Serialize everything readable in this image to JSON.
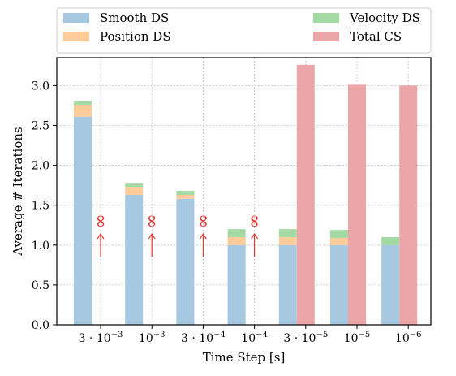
{
  "chart_data": {
    "type": "bar",
    "stacked_series_group": "DS",
    "categories": [
      {
        "base": "3 · 10",
        "exp": "−3"
      },
      {
        "base": "10",
        "exp": "−3"
      },
      {
        "base": "3 · 10",
        "exp": "−4"
      },
      {
        "base": "10",
        "exp": "−4"
      },
      {
        "base": "3 · 10",
        "exp": "−5"
      },
      {
        "base": "10",
        "exp": "−5"
      },
      {
        "base": "10",
        "exp": "−6"
      }
    ],
    "series": [
      {
        "name": "Smooth DS",
        "group": "DS",
        "color": "#a6c8e0",
        "values": [
          2.61,
          1.63,
          1.58,
          1.0,
          1.0,
          1.0,
          1.0
        ]
      },
      {
        "name": "Position DS",
        "group": "DS",
        "color": "#ffcc99",
        "values": [
          0.15,
          0.1,
          0.05,
          0.1,
          0.1,
          0.09,
          0.0
        ]
      },
      {
        "name": "Velocity DS",
        "group": "DS",
        "color": "#a3d9a3",
        "values": [
          0.05,
          0.05,
          0.05,
          0.1,
          0.1,
          0.1,
          0.1
        ]
      },
      {
        "name": "Total CS",
        "group": "CS",
        "color": "#eda6a8",
        "values": [
          null,
          null,
          null,
          null,
          3.26,
          3.01,
          3.0
        ]
      }
    ],
    "divergence_markers": {
      "series": "Total CS",
      "categories": [
        0,
        1,
        2,
        3
      ],
      "symbol": "∞",
      "color": "#e8352f",
      "marker_level": 1.3
    },
    "xlabel": "Time Step [s]",
    "ylabel": "Average # Iterations",
    "ylim": [
      0,
      3.35
    ],
    "yticks": [
      0.0,
      0.5,
      1.0,
      1.5,
      2.0,
      2.5,
      3.0
    ],
    "ytick_labels": [
      "0.0",
      "0.5",
      "1.0",
      "1.5",
      "2.0",
      "2.5",
      "3.0"
    ],
    "grid": true,
    "legend_placement": "top, outside (2 columns)"
  }
}
